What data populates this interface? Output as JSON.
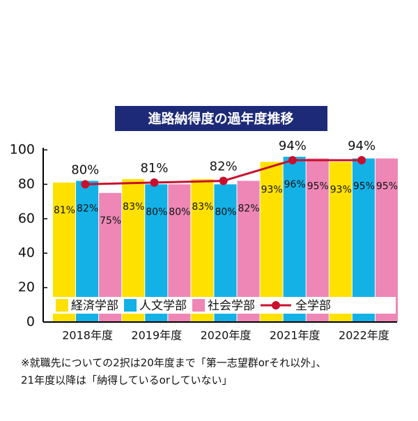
{
  "chart_data": {
    "type": "bar",
    "title": "進路納得度の過年度推移",
    "categories": [
      "2018年度",
      "2019年度",
      "2020年度",
      "2021年度",
      "2022年度"
    ],
    "series": [
      {
        "name": "経済学部",
        "color": "#ffe100",
        "values": [
          81,
          83,
          83,
          93,
          93
        ],
        "value_labels": [
          "81%",
          "83%",
          "83%",
          "93%",
          "93%"
        ]
      },
      {
        "name": "人文学部",
        "color": "#14b1e7",
        "values": [
          82,
          80,
          80,
          96,
          95
        ],
        "value_labels": [
          "82%",
          "80%",
          "80%",
          "96%",
          "95%"
        ]
      },
      {
        "name": "社会学部",
        "color": "#ee87b6",
        "values": [
          75,
          80,
          82,
          95,
          95
        ],
        "value_labels": [
          "75%",
          "80%",
          "82%",
          "95%",
          "95%"
        ]
      },
      {
        "name": "全学部",
        "type": "line",
        "color": "#c8102e",
        "values": [
          80,
          81,
          82,
          94,
          94
        ],
        "value_labels": [
          "80%",
          "81%",
          "82%",
          "94%",
          "94%"
        ]
      }
    ],
    "ylim": [
      0,
      100
    ],
    "yticks": [
      0,
      20,
      40,
      60,
      80,
      100
    ],
    "note": [
      "※就職先についての2択は20年度まで「第一志望群orそれ以外」、",
      "21年度以降は「納得しているorしていない」"
    ]
  }
}
